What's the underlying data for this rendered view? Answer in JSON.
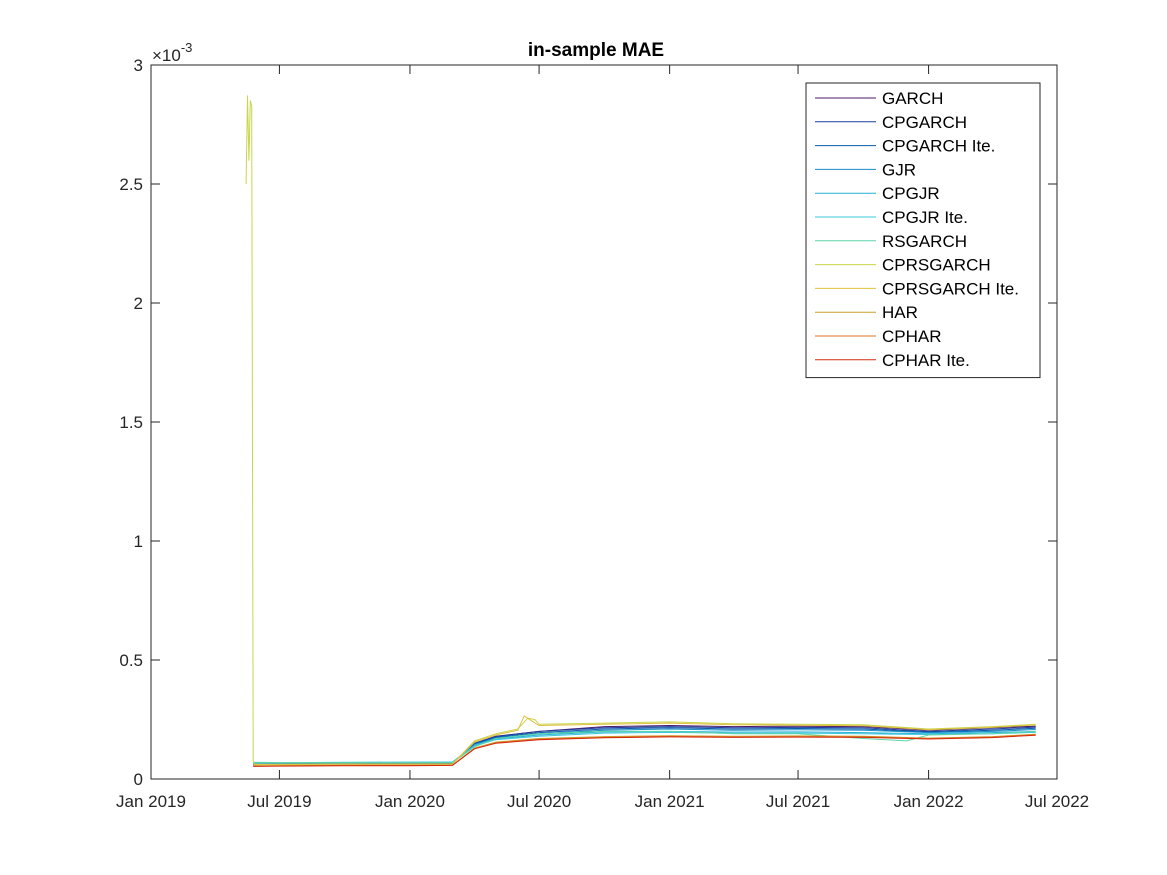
{
  "chart_data": {
    "type": "line",
    "title": "in-sample MAE",
    "xlabel": "",
    "ylabel": "",
    "y_exponent_label": "×10",
    "y_exponent_power": "-3",
    "xlim": [
      "2019-01-01",
      "2022-07-01"
    ],
    "ylim": [
      0,
      3
    ],
    "x_ticks": [
      "2019-01-01",
      "2019-07-01",
      "2020-01-01",
      "2020-07-01",
      "2021-01-01",
      "2021-07-01",
      "2022-01-01",
      "2022-07-01"
    ],
    "x_tick_labels": [
      "Jan 2019",
      "Jul 2019",
      "Jan 2020",
      "Jul 2020",
      "Jan 2021",
      "Jul 2021",
      "Jan 2022",
      "Jul 2022"
    ],
    "y_ticks": [
      0,
      0.5,
      1,
      1.5,
      2,
      2.5,
      3
    ],
    "y_tick_labels": [
      "0",
      "0.5",
      "1",
      "1.5",
      "2",
      "2.5",
      "3"
    ],
    "grid": false,
    "legend_position": "top-right",
    "series": [
      {
        "name": "GARCH",
        "color": "#4b1a6b",
        "points": [
          [
            "2019-05-25",
            0.06
          ],
          [
            "2019-07-01",
            0.062
          ],
          [
            "2019-10-01",
            0.064
          ],
          [
            "2020-01-01",
            0.064
          ],
          [
            "2020-03-01",
            0.065
          ],
          [
            "2020-04-01",
            0.15
          ],
          [
            "2020-05-01",
            0.18
          ],
          [
            "2020-07-01",
            0.2
          ],
          [
            "2020-10-01",
            0.22
          ],
          [
            "2021-01-01",
            0.225
          ],
          [
            "2021-04-01",
            0.22
          ],
          [
            "2021-07-01",
            0.222
          ],
          [
            "2021-10-01",
            0.22
          ],
          [
            "2022-01-01",
            0.205
          ],
          [
            "2022-04-01",
            0.215
          ],
          [
            "2022-06-01",
            0.222
          ]
        ]
      },
      {
        "name": "CPGARCH",
        "color": "#1f3fa0",
        "points": [
          [
            "2019-05-25",
            0.062
          ],
          [
            "2019-07-01",
            0.063
          ],
          [
            "2019-10-01",
            0.066
          ],
          [
            "2020-01-01",
            0.066
          ],
          [
            "2020-03-01",
            0.067
          ],
          [
            "2020-04-01",
            0.15
          ],
          [
            "2020-05-01",
            0.178
          ],
          [
            "2020-07-01",
            0.2
          ],
          [
            "2020-10-01",
            0.215
          ],
          [
            "2021-01-01",
            0.22
          ],
          [
            "2021-04-01",
            0.215
          ],
          [
            "2021-07-01",
            0.217
          ],
          [
            "2021-10-01",
            0.215
          ],
          [
            "2022-01-01",
            0.2
          ],
          [
            "2022-04-01",
            0.21
          ],
          [
            "2022-06-01",
            0.218
          ]
        ]
      },
      {
        "name": "CPGARCH Ite.",
        "color": "#0a5cab",
        "points": [
          [
            "2019-05-25",
            0.063
          ],
          [
            "2019-07-01",
            0.064
          ],
          [
            "2019-10-01",
            0.067
          ],
          [
            "2020-01-01",
            0.067
          ],
          [
            "2020-03-01",
            0.068
          ],
          [
            "2020-04-01",
            0.148
          ],
          [
            "2020-05-01",
            0.175
          ],
          [
            "2020-07-01",
            0.195
          ],
          [
            "2020-10-01",
            0.21
          ],
          [
            "2021-01-01",
            0.215
          ],
          [
            "2021-04-01",
            0.21
          ],
          [
            "2021-07-01",
            0.212
          ],
          [
            "2021-10-01",
            0.21
          ],
          [
            "2022-01-01",
            0.197
          ],
          [
            "2022-04-01",
            0.205
          ],
          [
            "2022-06-01",
            0.213
          ]
        ]
      },
      {
        "name": "GJR",
        "color": "#1a8cc8",
        "points": [
          [
            "2019-05-25",
            0.065
          ],
          [
            "2019-07-01",
            0.066
          ],
          [
            "2019-10-01",
            0.068
          ],
          [
            "2020-01-01",
            0.069
          ],
          [
            "2020-03-01",
            0.07
          ],
          [
            "2020-04-01",
            0.145
          ],
          [
            "2020-05-01",
            0.172
          ],
          [
            "2020-07-01",
            0.19
          ],
          [
            "2020-10-01",
            0.205
          ],
          [
            "2021-01-01",
            0.21
          ],
          [
            "2021-04-01",
            0.205
          ],
          [
            "2021-07-01",
            0.207
          ],
          [
            "2021-10-01",
            0.205
          ],
          [
            "2022-01-01",
            0.195
          ],
          [
            "2022-04-01",
            0.2
          ],
          [
            "2022-06-01",
            0.208
          ]
        ]
      },
      {
        "name": "CPGJR",
        "color": "#23b0d6",
        "points": [
          [
            "2019-05-25",
            0.066
          ],
          [
            "2019-07-01",
            0.067
          ],
          [
            "2019-10-01",
            0.069
          ],
          [
            "2020-01-01",
            0.07
          ],
          [
            "2020-03-01",
            0.071
          ],
          [
            "2020-04-01",
            0.14
          ],
          [
            "2020-05-01",
            0.168
          ],
          [
            "2020-07-01",
            0.185
          ],
          [
            "2020-10-01",
            0.198
          ],
          [
            "2021-01-01",
            0.2
          ],
          [
            "2021-04-01",
            0.197
          ],
          [
            "2021-07-01",
            0.198
          ],
          [
            "2021-10-01",
            0.195
          ],
          [
            "2022-01-01",
            0.19
          ],
          [
            "2022-04-01",
            0.195
          ],
          [
            "2022-06-01",
            0.2
          ]
        ]
      },
      {
        "name": "CPGJR Ite.",
        "color": "#3cc8dc",
        "points": [
          [
            "2019-05-25",
            0.067
          ],
          [
            "2019-07-01",
            0.068
          ],
          [
            "2019-10-01",
            0.07
          ],
          [
            "2020-01-01",
            0.071
          ],
          [
            "2020-03-01",
            0.072
          ],
          [
            "2020-04-01",
            0.138
          ],
          [
            "2020-05-01",
            0.165
          ],
          [
            "2020-07-01",
            0.18
          ],
          [
            "2020-10-01",
            0.193
          ],
          [
            "2021-01-01",
            0.196
          ],
          [
            "2021-04-01",
            0.192
          ],
          [
            "2021-07-01",
            0.193
          ],
          [
            "2021-10-01",
            0.19
          ],
          [
            "2022-01-01",
            0.187
          ],
          [
            "2022-04-01",
            0.19
          ],
          [
            "2022-06-01",
            0.196
          ]
        ]
      },
      {
        "name": "RSGARCH",
        "color": "#5fd6a8",
        "points": [
          [
            "2019-05-25",
            0.07
          ],
          [
            "2019-07-01",
            0.069
          ],
          [
            "2019-10-01",
            0.068
          ],
          [
            "2020-01-01",
            0.068
          ],
          [
            "2020-03-01",
            0.069
          ],
          [
            "2020-04-01",
            0.135
          ],
          [
            "2020-05-01",
            0.17
          ],
          [
            "2020-07-01",
            0.19
          ],
          [
            "2020-10-01",
            0.2
          ],
          [
            "2021-01-01",
            0.2
          ],
          [
            "2021-04-01",
            0.19
          ],
          [
            "2021-07-01",
            0.19
          ],
          [
            "2021-10-01",
            0.17
          ],
          [
            "2021-12-01",
            0.16
          ],
          [
            "2022-01-01",
            0.185
          ],
          [
            "2022-04-01",
            0.19
          ],
          [
            "2022-06-01",
            0.2
          ]
        ]
      },
      {
        "name": "CPRSGARCH",
        "color": "#c8d64a",
        "points": [
          [
            "2019-05-15",
            2.5
          ],
          [
            "2019-05-17",
            2.87
          ],
          [
            "2019-05-19",
            2.6
          ],
          [
            "2019-05-21",
            2.85
          ],
          [
            "2019-05-23",
            2.83
          ],
          [
            "2019-05-25",
            0.08
          ],
          [
            "2019-05-27",
            0.06
          ],
          [
            "2019-07-01",
            0.06
          ],
          [
            "2019-10-01",
            0.062
          ],
          [
            "2020-01-01",
            0.062
          ],
          [
            "2020-03-01",
            0.063
          ],
          [
            "2020-04-01",
            0.16
          ],
          [
            "2020-05-01",
            0.19
          ],
          [
            "2020-06-01",
            0.21
          ],
          [
            "2020-06-15",
            0.255
          ],
          [
            "2020-06-25",
            0.25
          ],
          [
            "2020-07-01",
            0.23
          ],
          [
            "2020-10-01",
            0.235
          ],
          [
            "2021-01-01",
            0.24
          ],
          [
            "2021-04-01",
            0.232
          ],
          [
            "2021-07-01",
            0.23
          ],
          [
            "2021-10-01",
            0.228
          ],
          [
            "2022-01-01",
            0.21
          ],
          [
            "2022-04-01",
            0.22
          ],
          [
            "2022-06-01",
            0.23
          ]
        ]
      },
      {
        "name": "CPRSGARCH Ite.",
        "color": "#e0c040",
        "points": [
          [
            "2019-05-25",
            0.062
          ],
          [
            "2019-07-01",
            0.062
          ],
          [
            "2019-10-01",
            0.063
          ],
          [
            "2020-01-01",
            0.063
          ],
          [
            "2020-03-01",
            0.064
          ],
          [
            "2020-04-01",
            0.155
          ],
          [
            "2020-05-01",
            0.185
          ],
          [
            "2020-06-01",
            0.205
          ],
          [
            "2020-06-10",
            0.265
          ],
          [
            "2020-06-20",
            0.245
          ],
          [
            "2020-07-01",
            0.225
          ],
          [
            "2020-10-01",
            0.23
          ],
          [
            "2021-01-01",
            0.235
          ],
          [
            "2021-04-01",
            0.228
          ],
          [
            "2021-07-01",
            0.226
          ],
          [
            "2021-10-01",
            0.224
          ],
          [
            "2022-01-01",
            0.207
          ],
          [
            "2022-04-01",
            0.217
          ],
          [
            "2022-06-01",
            0.227
          ]
        ]
      },
      {
        "name": "HAR",
        "color": "#c8a028",
        "points": [
          [
            "2019-05-25",
            0.055
          ],
          [
            "2019-07-01",
            0.056
          ],
          [
            "2019-10-01",
            0.058
          ],
          [
            "2020-01-01",
            0.058
          ],
          [
            "2020-03-01",
            0.059
          ],
          [
            "2020-04-01",
            0.13
          ],
          [
            "2020-05-01",
            0.155
          ],
          [
            "2020-07-01",
            0.17
          ],
          [
            "2020-10-01",
            0.178
          ],
          [
            "2021-01-01",
            0.182
          ],
          [
            "2021-04-01",
            0.18
          ],
          [
            "2021-07-01",
            0.181
          ],
          [
            "2021-10-01",
            0.18
          ],
          [
            "2022-01-01",
            0.172
          ],
          [
            "2022-04-01",
            0.178
          ],
          [
            "2022-06-01",
            0.188
          ]
        ]
      },
      {
        "name": "CPHAR",
        "color": "#e07020",
        "points": [
          [
            "2019-05-25",
            0.054
          ],
          [
            "2019-07-01",
            0.055
          ],
          [
            "2019-10-01",
            0.057
          ],
          [
            "2020-01-01",
            0.057
          ],
          [
            "2020-03-01",
            0.058
          ],
          [
            "2020-04-01",
            0.128
          ],
          [
            "2020-05-01",
            0.152
          ],
          [
            "2020-07-01",
            0.167
          ],
          [
            "2020-10-01",
            0.175
          ],
          [
            "2021-01-01",
            0.179
          ],
          [
            "2021-04-01",
            0.177
          ],
          [
            "2021-07-01",
            0.178
          ],
          [
            "2021-10-01",
            0.177
          ],
          [
            "2022-01-01",
            0.17
          ],
          [
            "2022-04-01",
            0.176
          ],
          [
            "2022-06-01",
            0.186
          ]
        ]
      },
      {
        "name": "CPHAR Ite.",
        "color": "#d42a10",
        "points": [
          [
            "2019-05-25",
            0.053
          ],
          [
            "2019-07-01",
            0.054
          ],
          [
            "2019-10-01",
            0.056
          ],
          [
            "2020-01-01",
            0.056
          ],
          [
            "2020-03-01",
            0.057
          ],
          [
            "2020-04-01",
            0.127
          ],
          [
            "2020-05-01",
            0.15
          ],
          [
            "2020-07-01",
            0.165
          ],
          [
            "2020-10-01",
            0.173
          ],
          [
            "2021-01-01",
            0.177
          ],
          [
            "2021-04-01",
            0.175
          ],
          [
            "2021-07-01",
            0.176
          ],
          [
            "2021-10-01",
            0.175
          ],
          [
            "2022-01-01",
            0.168
          ],
          [
            "2022-04-01",
            0.174
          ],
          [
            "2022-06-01",
            0.184
          ]
        ]
      }
    ]
  }
}
